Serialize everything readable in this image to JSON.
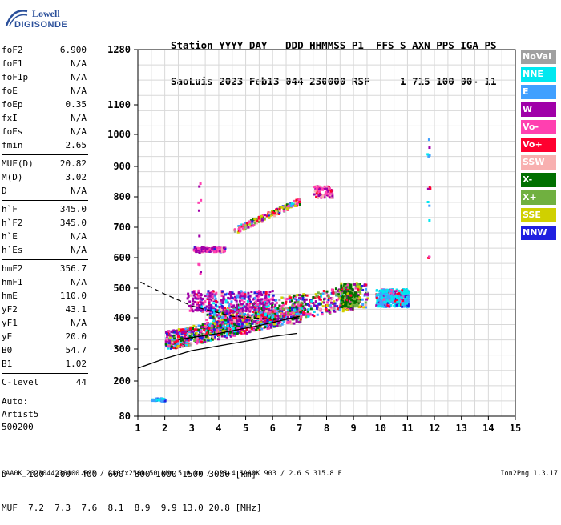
{
  "logo": {
    "line1": "Lowell",
    "line2": "DIGISONDE"
  },
  "header": {
    "labels": [
      "Station",
      "YYYY",
      "DAY",
      "DDD",
      "HHMMSS",
      "P1",
      "FFS",
      "S",
      "AXN",
      "PPS",
      "IGA",
      "PS"
    ],
    "values": [
      "SaoLuis",
      "2023",
      "Feb13",
      "044",
      "230000",
      "RSF",
      "",
      "1",
      "715",
      "100",
      "00-",
      "11"
    ]
  },
  "params": [
    {
      "name": "foF2",
      "value": "6.900"
    },
    {
      "name": "foF1",
      "value": "N/A"
    },
    {
      "name": "foF1p",
      "value": "N/A"
    },
    {
      "name": "foE",
      "value": "N/A"
    },
    {
      "name": "foEp",
      "value": "0.35"
    },
    {
      "name": "fxI",
      "value": "N/A"
    },
    {
      "name": "foEs",
      "value": "N/A"
    },
    {
      "name": "fmin",
      "value": "2.65"
    },
    {
      "name": "MUF(D)",
      "value": "20.82"
    },
    {
      "name": "M(D)",
      "value": "3.02"
    },
    {
      "name": "D",
      "value": "N/A"
    },
    {
      "name": "h`F",
      "value": "345.0"
    },
    {
      "name": "h`F2",
      "value": "345.0"
    },
    {
      "name": "h`E",
      "value": "N/A"
    },
    {
      "name": "h`Es",
      "value": "N/A"
    },
    {
      "name": "hmF2",
      "value": "356.7"
    },
    {
      "name": "hmF1",
      "value": "N/A"
    },
    {
      "name": "hmE",
      "value": "110.0"
    },
    {
      "name": "yF2",
      "value": "43.1"
    },
    {
      "name": "yF1",
      "value": "N/A"
    },
    {
      "name": "yE",
      "value": "20.0"
    },
    {
      "name": "B0",
      "value": "54.7"
    },
    {
      "name": "B1",
      "value": "1.02"
    },
    {
      "name": "C-level",
      "value": "44"
    }
  ],
  "auto": {
    "line1": "Auto:",
    "line2": "Artist5",
    "line3": "500200"
  },
  "legend": [
    {
      "label": "NoVal",
      "color": "#a0a0a0"
    },
    {
      "label": "NNE",
      "color": "#00e8f0"
    },
    {
      "label": "E",
      "color": "#40a0ff"
    },
    {
      "label": "W",
      "color": "#a000a8"
    },
    {
      "label": "Vo-",
      "color": "#ff40b0"
    },
    {
      "label": "Vo+",
      "color": "#ff0030"
    },
    {
      "label": "SSW",
      "color": "#f8b0b0"
    },
    {
      "label": "X-",
      "color": "#007000"
    },
    {
      "label": "X+",
      "color": "#70b040"
    },
    {
      "label": "SSE",
      "color": "#d0d000"
    },
    {
      "label": "NNW",
      "color": "#2020e0"
    }
  ],
  "chart_data": {
    "type": "scatter",
    "x_ticks": [
      "1",
      "2",
      "3",
      "4",
      "5",
      "6",
      "7",
      "8",
      "9",
      "10",
      "11",
      "12",
      "13",
      "14",
      "15"
    ],
    "y_ticks": [
      "80",
      "200",
      "300",
      "400",
      "500",
      "600",
      "700",
      "800",
      "900",
      "1000",
      "1100",
      "1280"
    ],
    "xlim": [
      1,
      15
    ],
    "ylim": [
      80,
      1280
    ],
    "grid": true,
    "profile_curve": [
      [
        1.0,
        240
      ],
      [
        2.0,
        270
      ],
      [
        3.0,
        295
      ],
      [
        4.0,
        310
      ],
      [
        5.0,
        325
      ],
      [
        6.0,
        340
      ],
      [
        6.9,
        350
      ]
    ],
    "trace_curve": [
      [
        2.5,
        330
      ],
      [
        4.0,
        350
      ],
      [
        5.5,
        375
      ],
      [
        6.5,
        395
      ],
      [
        7.0,
        405
      ]
    ],
    "dashed_curve": [
      [
        1.1,
        520
      ],
      [
        2.0,
        480
      ],
      [
        3.0,
        440
      ],
      [
        4.5,
        405
      ],
      [
        6.0,
        395
      ],
      [
        7.0,
        400
      ]
    ]
  },
  "dmuf": {
    "d_label": "D",
    "d_values": [
      "100",
      "200",
      "400",
      "600",
      "800",
      "1000",
      "1500",
      "3000",
      "[km]"
    ],
    "muf_label": "MUF",
    "muf_values": [
      "7.2",
      "7.3",
      "7.6",
      "8.1",
      "8.9",
      "9.9",
      "13.0",
      "20.8",
      "[MHz]"
    ]
  },
  "footer": {
    "text": "SAA0K_2023044230000.RSF / 280fx256h 50 kHs 5.0 km / DPS-4 SAA0K 903 / 2.6 S 315.8 E",
    "version": "Ion2Png 1.3.17"
  }
}
